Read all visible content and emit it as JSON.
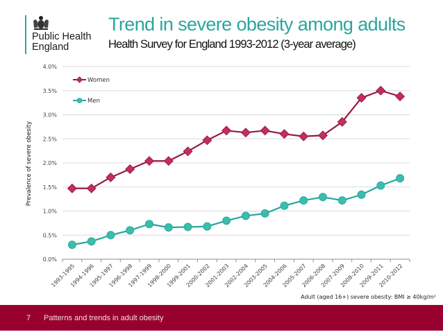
{
  "logo": {
    "icon": "royal-coat-of-arms-icon",
    "line1": "Public Health",
    "line2": "England"
  },
  "header": {
    "title": "Trend in severe obesity among adults",
    "subtitle": "Health Survey for England 1993-2012 (3-year average)"
  },
  "colors": {
    "accent": "#2aa69c",
    "women": "#98183e",
    "women_marker": "#c0305a",
    "men": "#23a89a",
    "men_marker": "#3cbcae",
    "footer": "#98002e",
    "grid": "#d9d9d9"
  },
  "chart_data": {
    "type": "line",
    "title": "Trend in severe obesity among adults",
    "subtitle": "Health Survey for England 1993-2012 (3-year average)",
    "xlabel": "",
    "ylabel": "Prevalence of severe obesity",
    "ylim": [
      0,
      4.0
    ],
    "yticks": [
      "0.0%",
      "0.5%",
      "1.0%",
      "1.5%",
      "2.0%",
      "2.5%",
      "3.0%",
      "3.5%",
      "4.0%"
    ],
    "ytick_values": [
      0,
      0.5,
      1.0,
      1.5,
      2.0,
      2.5,
      3.0,
      3.5,
      4.0
    ],
    "grid": true,
    "legend_position": "top-left",
    "categories": [
      "1993-1995",
      "1994-1996",
      "1995-1997",
      "1996-1998",
      "1997-1999",
      "1998-2000",
      "1999-2001",
      "2000-2002",
      "2001-2003",
      "2002-2004",
      "2003-2005",
      "2004-2006",
      "2005-2007",
      "2006-2008",
      "2007-2009",
      "2008-2010",
      "2009-2011",
      "2010-2012"
    ],
    "series": [
      {
        "name": "Women",
        "marker": "diamond",
        "values": [
          1.47,
          1.47,
          1.7,
          1.87,
          2.04,
          2.04,
          2.24,
          2.47,
          2.67,
          2.63,
          2.67,
          2.6,
          2.55,
          2.57,
          2.85,
          3.35,
          3.5,
          3.38
        ]
      },
      {
        "name": "Men",
        "marker": "circle",
        "values": [
          0.3,
          0.37,
          0.5,
          0.6,
          0.73,
          0.66,
          0.67,
          0.68,
          0.8,
          0.9,
          0.95,
          1.11,
          1.22,
          1.29,
          1.22,
          1.34,
          1.53,
          1.68
        ]
      }
    ],
    "annotation": "Adult (aged 16+) severe obesity: BMI ≥ 40kg/m²"
  },
  "footer": {
    "page_number": "7",
    "text": "Patterns and trends in adult obesity"
  }
}
